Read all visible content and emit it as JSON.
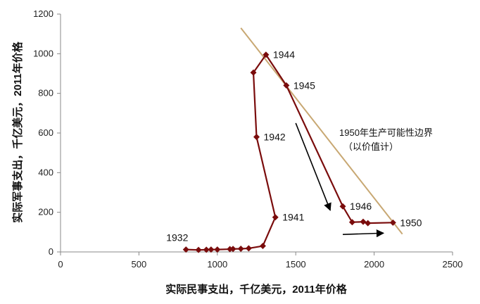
{
  "chart_data": {
    "type": "line",
    "xlabel": "实际民事支出，千亿美元，2011年价格",
    "ylabel": "实际军事支出，千亿美元，2011年价格",
    "xlim": [
      0,
      2500
    ],
    "ylim": [
      0,
      1200
    ],
    "x_ticks": [
      "0",
      "500",
      "1000",
      "1500",
      "2000",
      "2500"
    ],
    "y_ticks": [
      "0",
      "200",
      "400",
      "600",
      "800",
      "1000",
      "1200"
    ],
    "series_color": "#7a0c0c",
    "frontier_color": "#c8a873",
    "series": [
      {
        "points": [
          {
            "x": 800,
            "y": 12
          },
          {
            "x": 880,
            "y": 10
          },
          {
            "x": 930,
            "y": 11
          },
          {
            "x": 960,
            "y": 12
          },
          {
            "x": 1000,
            "y": 12
          },
          {
            "x": 1080,
            "y": 14
          },
          {
            "x": 1100,
            "y": 15
          },
          {
            "x": 1150,
            "y": 16
          },
          {
            "x": 1200,
            "y": 18
          },
          {
            "x": 1290,
            "y": 30
          },
          {
            "x": 1370,
            "y": 175
          },
          {
            "x": 1250,
            "y": 580
          },
          {
            "x": 1230,
            "y": 905
          },
          {
            "x": 1310,
            "y": 995
          },
          {
            "x": 1440,
            "y": 840
          },
          {
            "x": 1800,
            "y": 230
          },
          {
            "x": 1860,
            "y": 150
          },
          {
            "x": 1930,
            "y": 152
          },
          {
            "x": 1960,
            "y": 145
          },
          {
            "x": 2120,
            "y": 148
          }
        ]
      }
    ],
    "frontier": {
      "start": {
        "x": 1150,
        "y": 1130
      },
      "end": {
        "x": 2180,
        "y": 90
      }
    },
    "point_labels": [
      {
        "text": "1932",
        "x": 800,
        "y": 12,
        "pos": "above-left"
      },
      {
        "text": "1941",
        "x": 1370,
        "y": 175,
        "pos": "right"
      },
      {
        "text": "1942",
        "x": 1250,
        "y": 580,
        "pos": "right"
      },
      {
        "text": "1944",
        "x": 1310,
        "y": 995,
        "pos": "right"
      },
      {
        "text": "1945",
        "x": 1440,
        "y": 840,
        "pos": "right"
      },
      {
        "text": "1946",
        "x": 1800,
        "y": 230,
        "pos": "right"
      },
      {
        "text": "1950",
        "x": 2120,
        "y": 148,
        "pos": "right"
      }
    ],
    "annotations": {
      "frontier_label_line1": "1950年生产可能性边界",
      "frontier_label_line2": "（以价值计）"
    },
    "arrows": [
      {
        "from": {
          "x": 1500,
          "y": 650
        },
        "to": {
          "x": 1720,
          "y": 210
        }
      },
      {
        "from": {
          "x": 1800,
          "y": 88
        },
        "to": {
          "x": 2060,
          "y": 95
        }
      }
    ],
    "grid": false
  }
}
